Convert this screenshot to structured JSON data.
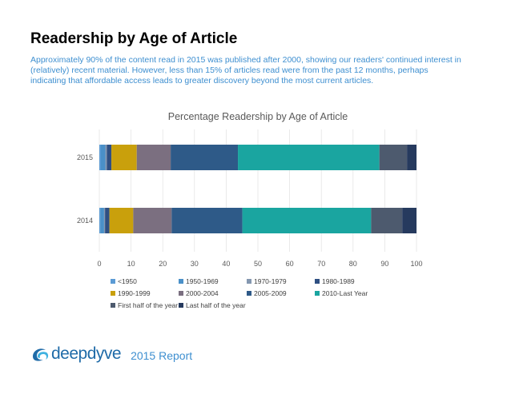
{
  "page": {
    "title": "Readership by Age of Article",
    "subtitle": "Approximately 90% of the content read in 2015 was published after 2000, showing our readers' continued interest in (relatively) recent material.  However, less than 15% of articles read were from the past 12 months, perhaps indicating that affordable access leads to greater discovery beyond the most current articles.",
    "logo_text": "deepdyve",
    "report_label": "2015 Report"
  },
  "chart_data": {
    "type": "bar",
    "orientation": "horizontal",
    "stacked": true,
    "title": "Percentage Readership by Age of Article",
    "categories": [
      "2015",
      "2014"
    ],
    "xlim": [
      0,
      100
    ],
    "xticks": [
      0,
      10,
      20,
      30,
      40,
      50,
      60,
      70,
      80,
      90,
      100
    ],
    "legend_position": "bottom",
    "series": [
      {
        "name": "<1950",
        "color": "#5b9bd5",
        "values": [
          0.5,
          0.3
        ]
      },
      {
        "name": "1950-1969",
        "color": "#4a90c8",
        "values": [
          1.4,
          1.2
        ]
      },
      {
        "name": "1970-1979",
        "color": "#8497b0",
        "values": [
          0.5,
          0.3
        ]
      },
      {
        "name": "1980-1989",
        "color": "#2f4f82",
        "values": [
          1.4,
          1.4
        ]
      },
      {
        "name": "1990-1999",
        "color": "#c9a00c",
        "values": [
          8.0,
          7.5
        ]
      },
      {
        "name": "2000-2004",
        "color": "#7b6f80",
        "values": [
          10.7,
          12.1
        ]
      },
      {
        "name": "2005-2009",
        "color": "#2e5a88",
        "values": [
          21.2,
          22.3
        ]
      },
      {
        "name": "2010-Last Year",
        "color": "#1aa5a0",
        "values": [
          44.6,
          40.6
        ]
      },
      {
        "name": "First half of the year",
        "color": "#4d5a6e",
        "values": [
          8.7,
          9.8
        ]
      },
      {
        "name": "Last half of the year",
        "color": "#263a5e",
        "values": [
          3.0,
          4.5
        ]
      }
    ]
  }
}
